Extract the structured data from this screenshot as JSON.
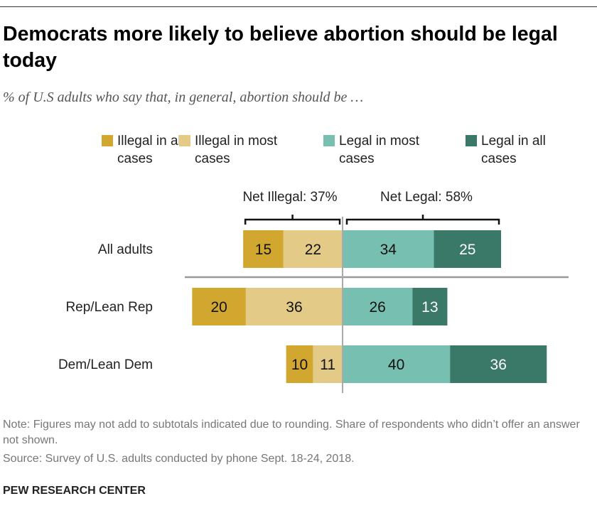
{
  "title": "Democrats more likely to believe abortion should be legal today",
  "subtitle": "% of U.S adults who say that, in general, abortion should be …",
  "note": "Note: Figures may not add to subtotals indicated due to rounding. Share of respondents who didn’t offer an answer not shown.",
  "source": "Source: Survey of U.S. adults conducted by phone Sept. 18-24, 2018.",
  "brand": "PEW RESEARCH CENTER",
  "chart_data": {
    "type": "bar",
    "orientation": "horizontal-diverging-stacked",
    "categories": [
      "All adults",
      "Rep/Lean Rep",
      "Dem/Lean Dem"
    ],
    "series": [
      {
        "name": "Illegal in all cases",
        "side": "left",
        "color": "#D1A730",
        "values": [
          15,
          20,
          10
        ]
      },
      {
        "name": "Illegal in most cases",
        "side": "left",
        "color": "#E3CA86",
        "values": [
          22,
          36,
          11
        ]
      },
      {
        "name": "Legal in most cases",
        "side": "right",
        "color": "#77BFB0",
        "values": [
          34,
          26,
          40
        ]
      },
      {
        "name": "Legal in all cases",
        "side": "right",
        "color": "#3A7868",
        "values": [
          25,
          13,
          36
        ]
      }
    ],
    "annotations": {
      "net_illegal": "Net Illegal: 37%",
      "net_legal": "Net Legal: 58%"
    },
    "legend": "top"
  }
}
